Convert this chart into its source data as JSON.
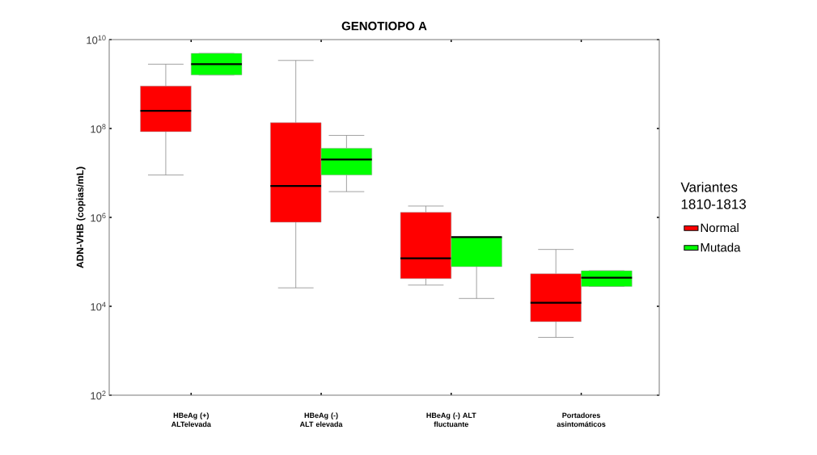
{
  "chart_data": {
    "type": "box",
    "title": "GENOTIOPO A",
    "ylabel": "ADN-VHB (copias/mL)",
    "legend_title": "Variantes 1810-1813",
    "legend": "right",
    "log": true,
    "categories": [
      "HBeAg (+) ALTelevada",
      "HBeAg (-) ALT elevada",
      "HBeAg (-) ALT fluctuante",
      "Portadores asintomáticos"
    ],
    "ylim": [
      100,
      10000000000
    ],
    "yticks": [
      {
        "value": 100,
        "label": "10$^{2}$"
      },
      {
        "value": 10000,
        "label": "10$^{4}$"
      },
      {
        "value": 1000000,
        "label": "10$^{6}$"
      },
      {
        "value": 100000000,
        "label": "10$^{8}$"
      },
      {
        "value": 10000000000,
        "label": "10$^{10}$"
      }
    ],
    "series": [
      {
        "name": "Normal",
        "color": "#ff0000",
        "boxes": [
          {
            "low": 9000000,
            "q1": 85000000,
            "median": 250000000,
            "q3": 900000000,
            "high": 2800000000
          },
          {
            "low": 26000,
            "q1": 780000,
            "median": 5100000,
            "q3": 135000000,
            "high": 3400000000
          },
          {
            "low": 30000,
            "q1": 42000,
            "median": 120000,
            "q3": 1300000,
            "high": 1800000
          },
          {
            "low": 2000,
            "q1": 4500,
            "median": 12000,
            "q3": 54000,
            "high": 190000
          }
        ]
      },
      {
        "name": "Mutada",
        "color": "#00ff00",
        "boxes": [
          {
            "low": 1600000000,
            "q1": 1600000000,
            "median": 2800000000,
            "q3": 4900000000,
            "high": 4900000000
          },
          {
            "low": 3800000,
            "q1": 9000000,
            "median": 20000000,
            "q3": 36000000,
            "high": 70000000
          },
          {
            "low": 15000,
            "q1": 78000,
            "median": 360000,
            "q3": 360000,
            "high": 360000
          },
          {
            "low": 28000,
            "q1": 28000,
            "median": 44000,
            "q3": 63000,
            "high": 63000
          }
        ]
      }
    ]
  }
}
